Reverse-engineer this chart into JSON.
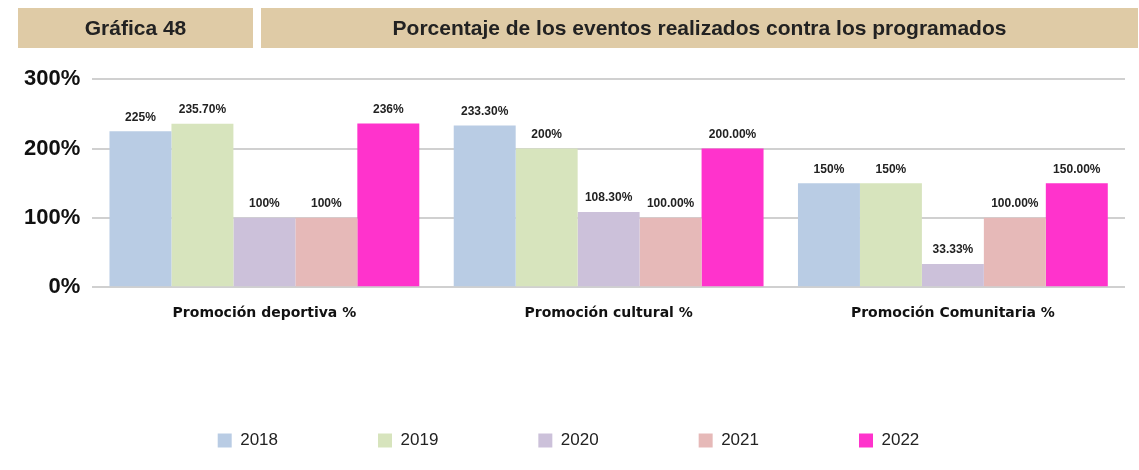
{
  "chart_data": {
    "type": "bar",
    "title": "Gráfica 48",
    "subtitle": "Porcentaje de los eventos realizados contra los programados",
    "categories": [
      "Promoción deportiva %",
      "Promoción cultural %",
      "Promoción Comunitaria %"
    ],
    "series": [
      {
        "name": "2018",
        "color": "#b9cce4",
        "values": [
          225,
          233.3,
          150
        ],
        "value_labels": [
          "225%",
          "233.30%",
          "150%"
        ]
      },
      {
        "name": "2019",
        "color": "#d7e4bd",
        "values": [
          235.7,
          200,
          150
        ],
        "value_labels": [
          "235.70%",
          "200%",
          "150%"
        ]
      },
      {
        "name": "2020",
        "color": "#ccc1da",
        "values": [
          100,
          108.3,
          33.33
        ],
        "value_labels": [
          "100%",
          "108.30%",
          "33.33%"
        ]
      },
      {
        "name": "2021",
        "color": "#e6b9b8",
        "values": [
          100,
          100,
          100
        ],
        "value_labels": [
          "100%",
          "100.00%",
          "100.00%"
        ]
      },
      {
        "name": "2022",
        "color": "#ff33cc",
        "values": [
          236,
          200,
          150
        ],
        "value_labels": [
          "236%",
          "200.00%",
          "150.00%"
        ]
      }
    ],
    "ylim": [
      0,
      300
    ],
    "yticks": [
      {
        "value": 0,
        "label": "0%"
      },
      {
        "value": 100,
        "label": "100%"
      },
      {
        "value": 200,
        "label": "200%"
      },
      {
        "value": 300,
        "label": "300%"
      }
    ],
    "grid": "y",
    "legend": "bottom"
  }
}
